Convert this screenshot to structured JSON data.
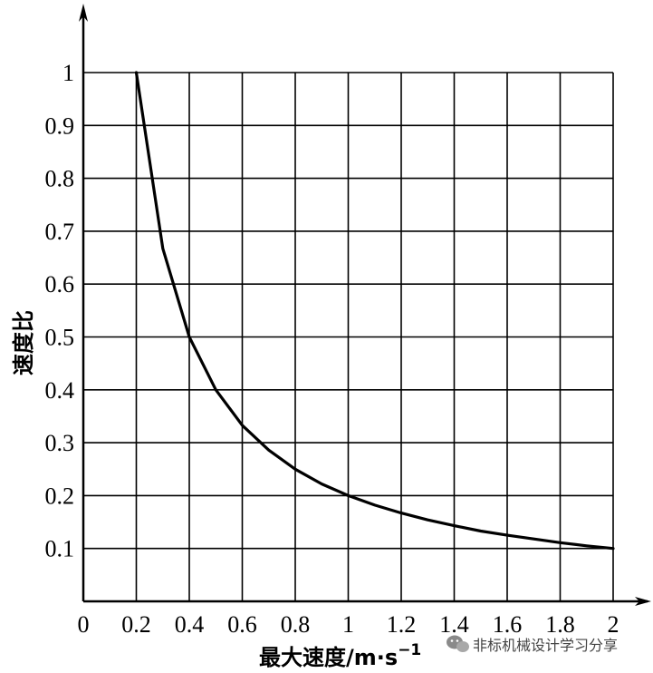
{
  "chart_data": {
    "type": "line",
    "title": "",
    "xlabel": "最大速度/m·s",
    "xlabel_sup": "−1",
    "ylabel": "速度比",
    "x_ticks": [
      "0",
      "0.2",
      "0.4",
      "0.6",
      "0.8",
      "1",
      "1.2",
      "1.4",
      "1.6",
      "1.8",
      "2"
    ],
    "y_ticks": [
      "0.1",
      "0.2",
      "0.3",
      "0.4",
      "0.5",
      "0.6",
      "0.7",
      "0.8",
      "0.9",
      "1"
    ],
    "grid": true,
    "series": [
      {
        "x": [
          0.2,
          0.3,
          0.4,
          0.5,
          0.6,
          0.7,
          0.8,
          0.9,
          1.0,
          1.1,
          1.2,
          1.3,
          1.4,
          1.5,
          1.6,
          1.7,
          1.8,
          1.9,
          2.0
        ],
        "y": [
          1.0,
          0.667,
          0.5,
          0.4,
          0.333,
          0.286,
          0.25,
          0.222,
          0.2,
          0.182,
          0.167,
          0.154,
          0.143,
          0.133,
          0.125,
          0.118,
          0.111,
          0.105,
          0.1
        ]
      }
    ]
  },
  "watermark": {
    "icon": "wechat-icon",
    "text": "非标机械设计学习分享"
  }
}
